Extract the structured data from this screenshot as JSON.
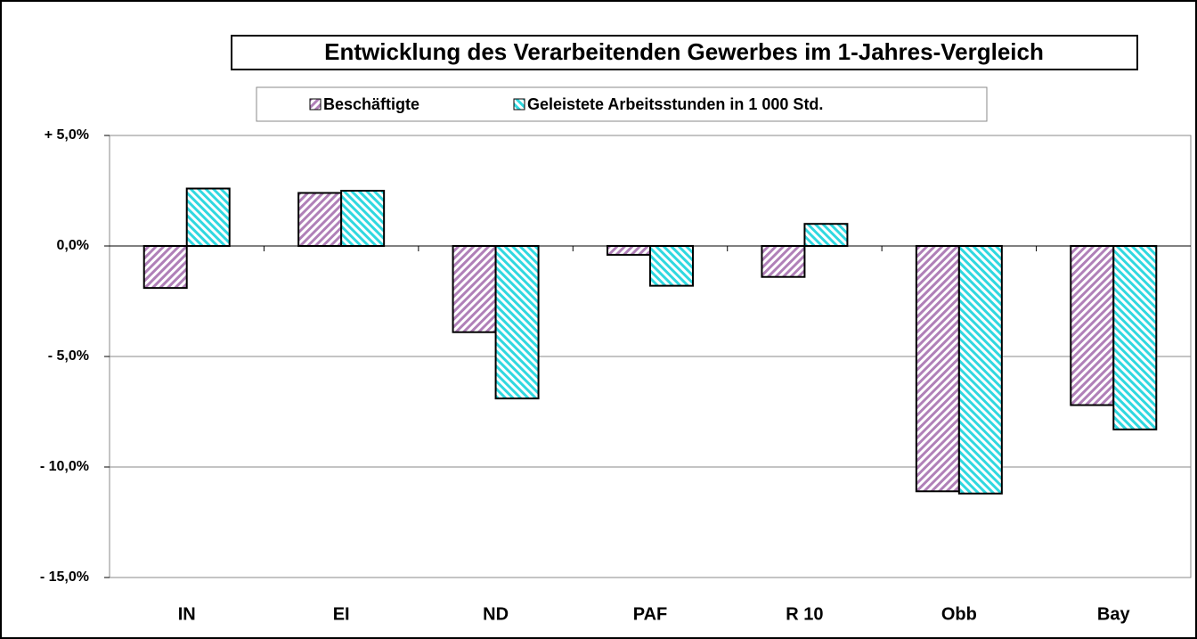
{
  "chart_data": {
    "type": "bar",
    "title": "Entwicklung des Verarbeitenden Gewerbes im 1-Jahres-Vergleich",
    "categories": [
      "IN",
      "EI",
      "ND",
      "PAF",
      "R 10",
      "Obb",
      "Bay"
    ],
    "series": [
      {
        "name": "Beschäftigte",
        "color": "#b080b8",
        "values": [
          -1.9,
          2.4,
          -3.9,
          -0.4,
          -1.4,
          -11.1,
          -7.2
        ]
      },
      {
        "name": "Geleistete Arbeitsstunden in 1 000 Std.",
        "color": "#30d8e0",
        "values": [
          2.6,
          2.5,
          -6.9,
          -1.8,
          1.0,
          -11.2,
          -8.3
        ]
      }
    ],
    "ylim": [
      -15,
      5
    ],
    "yticks": [
      {
        "value": -15,
        "label": "- 15,0%"
      },
      {
        "value": -10,
        "label": "- 10,0%"
      },
      {
        "value": -5,
        "label": "- 5,0%"
      },
      {
        "value": 0,
        "label": "0,0%"
      },
      {
        "value": 5,
        "label": "+ 5,0%"
      }
    ],
    "grid": true
  }
}
